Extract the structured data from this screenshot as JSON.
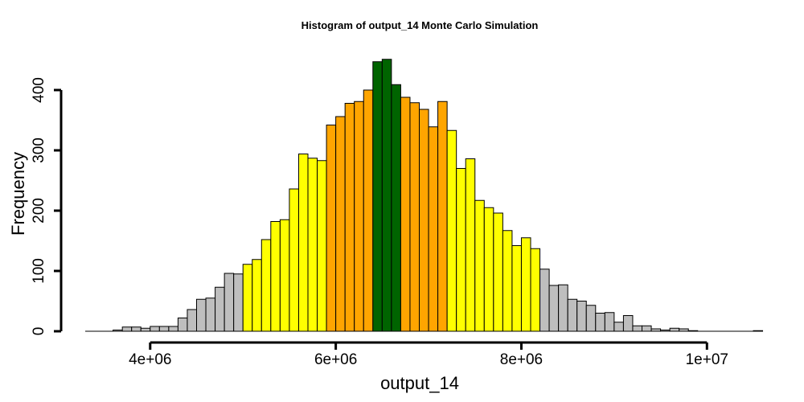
{
  "chart_data": {
    "type": "bar",
    "title": "Histogram of  output_14  Monte Carlo Simulation",
    "xlabel": "output_14",
    "ylabel": "Frequency",
    "xlim": [
      3300000,
      10500000
    ],
    "ylim": [
      0,
      450
    ],
    "bin_width": 100000,
    "x_ticks": [
      {
        "value": 4000000,
        "label": "4e+06"
      },
      {
        "value": 6000000,
        "label": "6e+06"
      },
      {
        "value": 8000000,
        "label": "8e+06"
      },
      {
        "value": 10000000,
        "label": "1e+07"
      }
    ],
    "y_ticks": [
      {
        "value": 0,
        "label": "0"
      },
      {
        "value": 100,
        "label": "100"
      },
      {
        "value": 200,
        "label": "200"
      },
      {
        "value": 300,
        "label": "300"
      },
      {
        "value": 400,
        "label": "400"
      }
    ],
    "colors": {
      "gray": "#bebebe",
      "yellow": "#ffff00",
      "orange": "#ffa500",
      "green": "#006400"
    },
    "bins": [
      {
        "start": 3600000,
        "count": 2,
        "color": "gray"
      },
      {
        "start": 3700000,
        "count": 7,
        "color": "gray"
      },
      {
        "start": 3800000,
        "count": 7,
        "color": "gray"
      },
      {
        "start": 3900000,
        "count": 5,
        "color": "gray"
      },
      {
        "start": 4000000,
        "count": 8,
        "color": "gray"
      },
      {
        "start": 4100000,
        "count": 8,
        "color": "gray"
      },
      {
        "start": 4200000,
        "count": 8,
        "color": "gray"
      },
      {
        "start": 4300000,
        "count": 22,
        "color": "gray"
      },
      {
        "start": 4400000,
        "count": 36,
        "color": "gray"
      },
      {
        "start": 4500000,
        "count": 53,
        "color": "gray"
      },
      {
        "start": 4600000,
        "count": 55,
        "color": "gray"
      },
      {
        "start": 4700000,
        "count": 73,
        "color": "gray"
      },
      {
        "start": 4800000,
        "count": 96,
        "color": "gray"
      },
      {
        "start": 4900000,
        "count": 95,
        "color": "gray"
      },
      {
        "start": 5000000,
        "count": 111,
        "color": "yellow"
      },
      {
        "start": 5100000,
        "count": 119,
        "color": "yellow"
      },
      {
        "start": 5200000,
        "count": 152,
        "color": "yellow"
      },
      {
        "start": 5300000,
        "count": 182,
        "color": "yellow"
      },
      {
        "start": 5400000,
        "count": 185,
        "color": "yellow"
      },
      {
        "start": 5500000,
        "count": 236,
        "color": "yellow"
      },
      {
        "start": 5600000,
        "count": 294,
        "color": "yellow"
      },
      {
        "start": 5700000,
        "count": 287,
        "color": "yellow"
      },
      {
        "start": 5800000,
        "count": 283,
        "color": "yellow"
      },
      {
        "start": 5900000,
        "count": 342,
        "color": "orange"
      },
      {
        "start": 6000000,
        "count": 356,
        "color": "orange"
      },
      {
        "start": 6100000,
        "count": 378,
        "color": "orange"
      },
      {
        "start": 6200000,
        "count": 381,
        "color": "orange"
      },
      {
        "start": 6300000,
        "count": 400,
        "color": "orange"
      },
      {
        "start": 6400000,
        "count": 447,
        "color": "green"
      },
      {
        "start": 6500000,
        "count": 451,
        "color": "green"
      },
      {
        "start": 6600000,
        "count": 409,
        "color": "green"
      },
      {
        "start": 6700000,
        "count": 388,
        "color": "orange"
      },
      {
        "start": 6800000,
        "count": 379,
        "color": "orange"
      },
      {
        "start": 6900000,
        "count": 368,
        "color": "orange"
      },
      {
        "start": 7000000,
        "count": 339,
        "color": "orange"
      },
      {
        "start": 7100000,
        "count": 381,
        "color": "orange"
      },
      {
        "start": 7200000,
        "count": 333,
        "color": "yellow"
      },
      {
        "start": 7300000,
        "count": 270,
        "color": "yellow"
      },
      {
        "start": 7400000,
        "count": 286,
        "color": "yellow"
      },
      {
        "start": 7500000,
        "count": 217,
        "color": "yellow"
      },
      {
        "start": 7600000,
        "count": 205,
        "color": "yellow"
      },
      {
        "start": 7700000,
        "count": 196,
        "color": "yellow"
      },
      {
        "start": 7800000,
        "count": 167,
        "color": "yellow"
      },
      {
        "start": 7900000,
        "count": 142,
        "color": "yellow"
      },
      {
        "start": 8000000,
        "count": 155,
        "color": "yellow"
      },
      {
        "start": 8100000,
        "count": 137,
        "color": "yellow"
      },
      {
        "start": 8200000,
        "count": 103,
        "color": "gray"
      },
      {
        "start": 8300000,
        "count": 76,
        "color": "gray"
      },
      {
        "start": 8400000,
        "count": 77,
        "color": "gray"
      },
      {
        "start": 8500000,
        "count": 53,
        "color": "gray"
      },
      {
        "start": 8600000,
        "count": 50,
        "color": "gray"
      },
      {
        "start": 8700000,
        "count": 43,
        "color": "gray"
      },
      {
        "start": 8800000,
        "count": 30,
        "color": "gray"
      },
      {
        "start": 8900000,
        "count": 31,
        "color": "gray"
      },
      {
        "start": 9000000,
        "count": 15,
        "color": "gray"
      },
      {
        "start": 9100000,
        "count": 26,
        "color": "gray"
      },
      {
        "start": 9200000,
        "count": 9,
        "color": "gray"
      },
      {
        "start": 9300000,
        "count": 9,
        "color": "gray"
      },
      {
        "start": 9400000,
        "count": 4,
        "color": "gray"
      },
      {
        "start": 9500000,
        "count": 2,
        "color": "gray"
      },
      {
        "start": 9600000,
        "count": 5,
        "color": "gray"
      },
      {
        "start": 9700000,
        "count": 4,
        "color": "gray"
      },
      {
        "start": 9800000,
        "count": 1,
        "color": "gray"
      },
      {
        "start": 10500000,
        "count": 1,
        "color": "gray"
      }
    ]
  }
}
